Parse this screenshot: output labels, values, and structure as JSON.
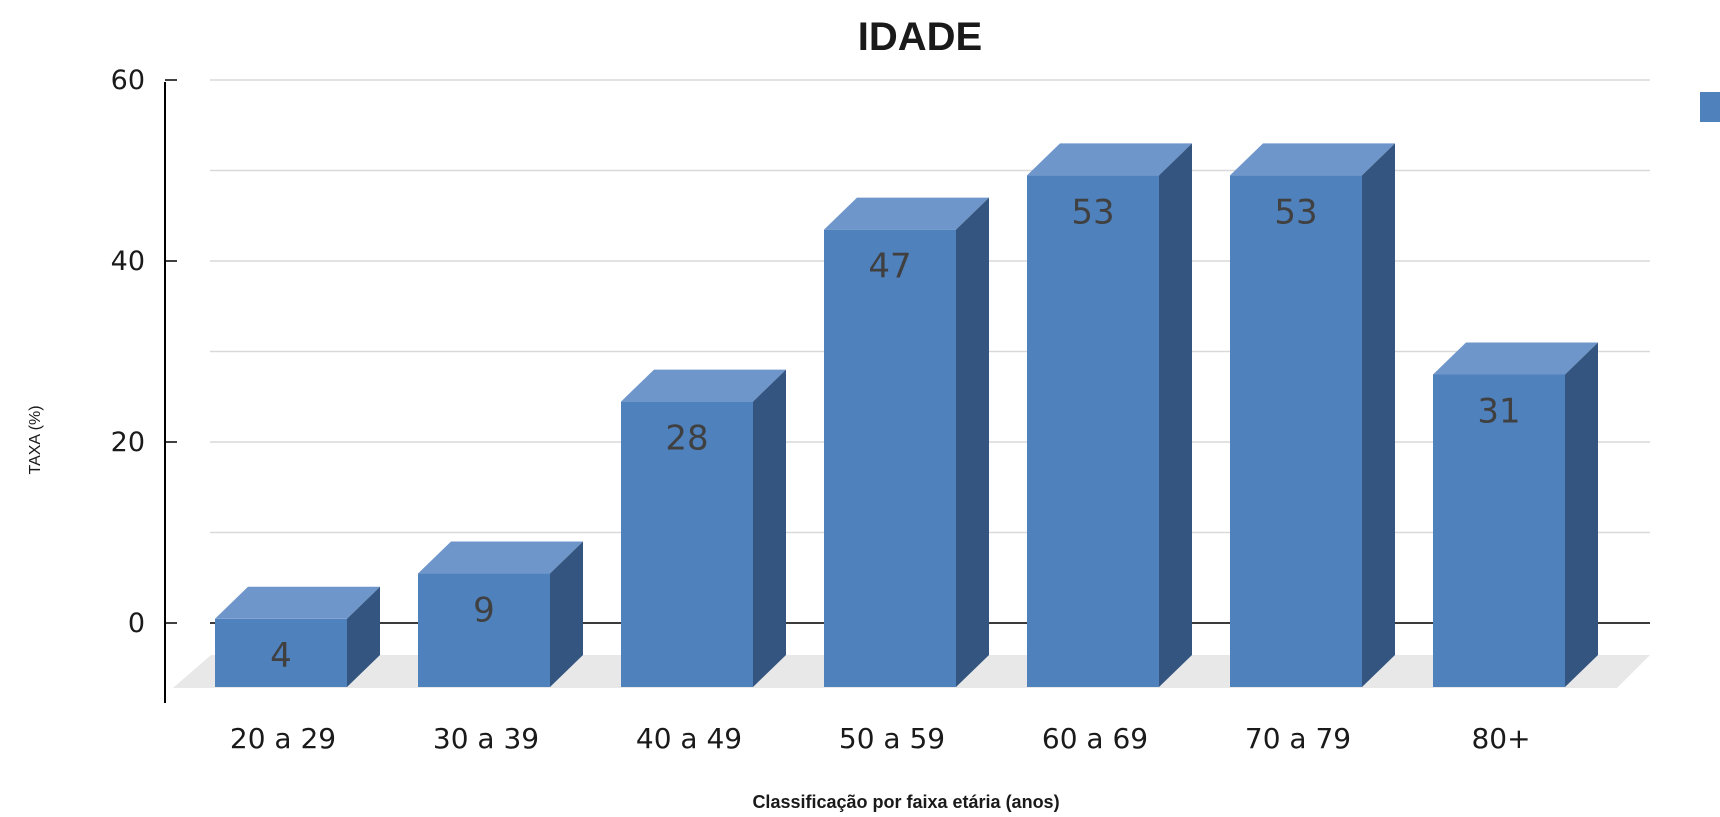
{
  "chart_data": {
    "type": "bar",
    "style": "3d-column",
    "title": "IDADE",
    "xlabel": "Classificação por faixa etária (anos)",
    "ylabel": "TAXA (%)",
    "categories": [
      "20 a 29",
      "30 a 39",
      "40 a 49",
      "50 a 59",
      "60 a 69",
      "70 a 79",
      "80+"
    ],
    "series": [
      {
        "values": [
          4,
          9,
          28,
          47,
          53,
          53,
          31
        ]
      }
    ],
    "ylim": [
      0,
      60
    ],
    "yticks": [
      "0",
      "20",
      "40",
      "60"
    ],
    "grid": true,
    "legend": "right",
    "colors": {
      "bar_front": "#4f81bd",
      "bar_top": "#6f96cb",
      "bar_side": "#33557f",
      "floor": "#e8e8e8",
      "grid": "#d9d9d9",
      "label": "#404040"
    }
  }
}
